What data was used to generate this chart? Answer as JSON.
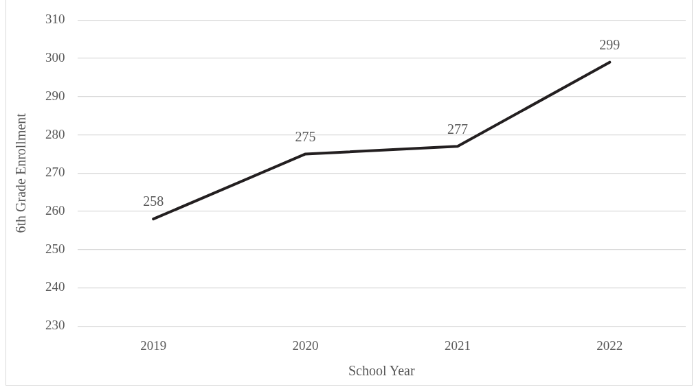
{
  "chart_data": {
    "type": "line",
    "xlabel": "School Year",
    "ylabel": "6th Grade Enrollment",
    "categories": [
      "2019",
      "2020",
      "2021",
      "2022"
    ],
    "series": [
      {
        "color": "#231f20",
        "values": [
          258,
          275,
          277,
          299
        ]
      }
    ],
    "ylim": [
      230,
      310
    ],
    "yticks": [
      230,
      240,
      250,
      260,
      270,
      280,
      290,
      300,
      310
    ],
    "grid": "y",
    "marker": "none",
    "line_style": "solid",
    "data_labels": true
  }
}
